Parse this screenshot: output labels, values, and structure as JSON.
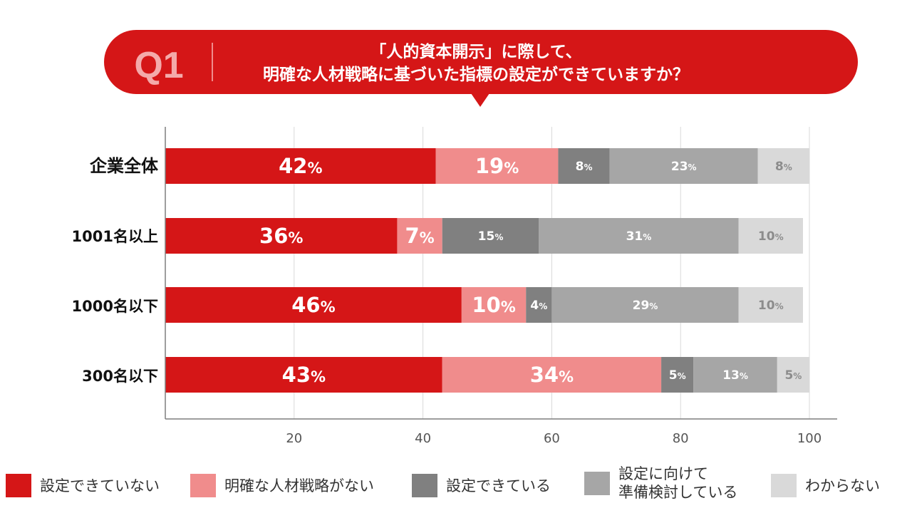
{
  "header": {
    "q_label": "Q1",
    "question_line1": "「人的資本開示」に際して、",
    "question_line2": "明確な人材戦略に基づいた指標の設定ができていますか？"
  },
  "chart_data": {
    "type": "bar",
    "orientation": "horizontal",
    "stacked": true,
    "xlim": [
      0,
      100
    ],
    "xticks": [
      20,
      40,
      60,
      80,
      100
    ],
    "categories": [
      "企業全体",
      "1001名以上",
      "1000名以下",
      "300名以下"
    ],
    "series": [
      {
        "name": "設定できていない",
        "color": "#d51617",
        "values": [
          42,
          36,
          46,
          43
        ]
      },
      {
        "name": "明確な人材戦略がない",
        "color": "#f08c8c",
        "values": [
          19,
          7,
          10,
          34
        ]
      },
      {
        "name": "設定できている",
        "color": "#808080",
        "values": [
          8,
          15,
          4,
          5
        ]
      },
      {
        "name": "設定に向けて\n準備検討している",
        "color": "#a6a6a6",
        "values": [
          23,
          31,
          29,
          13
        ]
      },
      {
        "name": "わからない",
        "color": "#d9d9d9",
        "values": [
          8,
          10,
          10,
          5
        ]
      }
    ],
    "label_color": [
      "#ffffff",
      "#ffffff",
      "#ffffff",
      "#ffffff",
      "#8c8c8c"
    ],
    "value_suffix": "%"
  }
}
